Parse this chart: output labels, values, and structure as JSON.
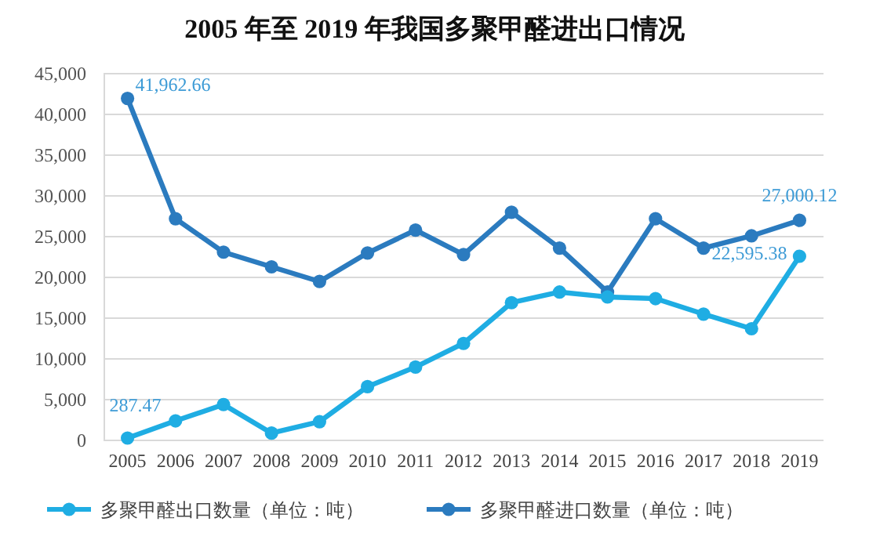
{
  "chart_data": {
    "type": "line",
    "title": "2005 年至 2019 年我国多聚甲醛进出口情况",
    "categories": [
      "2005",
      "2006",
      "2007",
      "2008",
      "2009",
      "2010",
      "2011",
      "2012",
      "2013",
      "2014",
      "2015",
      "2016",
      "2017",
      "2018",
      "2019"
    ],
    "series": [
      {
        "name": "多聚甲醛出口数量（单位：吨）",
        "color": "#1fade3",
        "values": [
          287.47,
          2400,
          4400,
          900,
          2300,
          6600,
          9000,
          11900,
          16900,
          18200,
          17600,
          17400,
          15500,
          13700,
          22595.38
        ],
        "value_labels": [
          "287.47",
          null,
          null,
          null,
          null,
          null,
          null,
          null,
          null,
          null,
          null,
          null,
          null,
          null,
          "22,595.38"
        ]
      },
      {
        "name": "多聚甲醛进口数量（单位：吨）",
        "color": "#2b7bbf",
        "values": [
          41962.66,
          27200,
          23100,
          21300,
          19500,
          23000,
          25800,
          22800,
          28000,
          23600,
          18200,
          27200,
          23600,
          25100,
          27000.12
        ],
        "value_labels": [
          "41,962.66",
          null,
          null,
          null,
          null,
          null,
          null,
          null,
          null,
          null,
          null,
          null,
          null,
          null,
          "27,000.12"
        ]
      }
    ],
    "ylim": [
      0,
      45000
    ],
    "yticks": [
      {
        "value": 0,
        "label": "0"
      },
      {
        "value": 5000,
        "label": "5,000"
      },
      {
        "value": 10000,
        "label": "10,000"
      },
      {
        "value": 15000,
        "label": "15,000"
      },
      {
        "value": 20000,
        "label": "20,000"
      },
      {
        "value": 25000,
        "label": "25,000"
      },
      {
        "value": 30000,
        "label": "30,000"
      },
      {
        "value": 35000,
        "label": "35,000"
      },
      {
        "value": 40000,
        "label": "40,000"
      },
      {
        "value": 45000,
        "label": "45,000"
      }
    ],
    "grid": "y",
    "legend": "bottom",
    "marker": "circle",
    "line_style": "solid"
  }
}
